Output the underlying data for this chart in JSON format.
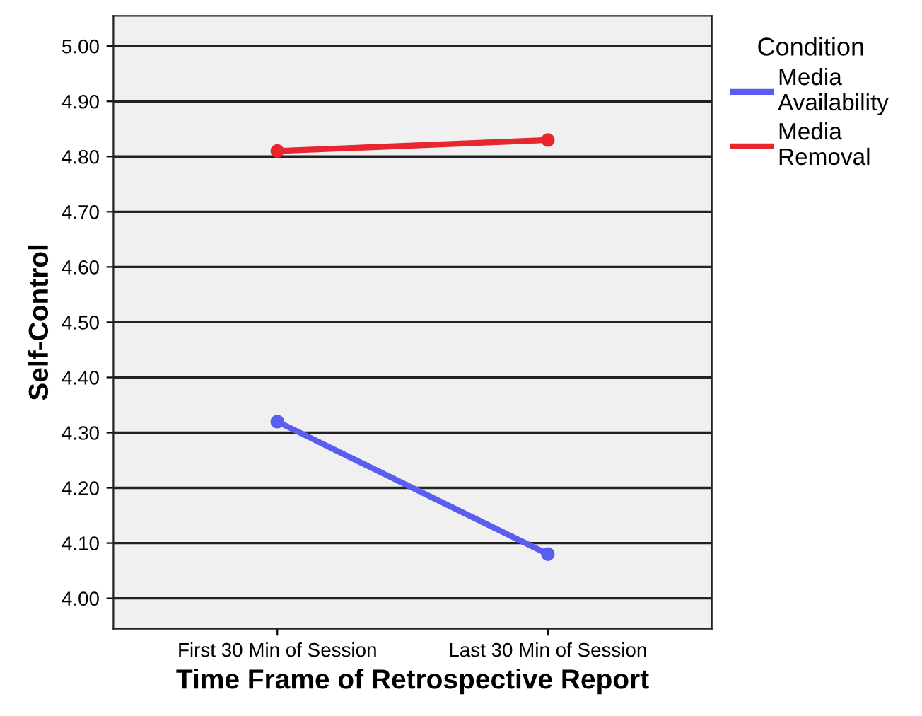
{
  "chart_data": {
    "type": "line",
    "xlabel": "Time Frame of Retrospective Report",
    "ylabel": "Self-Control",
    "legend_title": "Condition",
    "categories": [
      "First 30 Min of Session",
      "Last 30 Min of Session"
    ],
    "series": [
      {
        "name": "Media\nAvailability",
        "color": "#5b5cf0",
        "values": [
          4.32,
          4.08
        ]
      },
      {
        "name": "Media\nRemoval",
        "color": "#e8262f",
        "values": [
          4.81,
          4.83
        ]
      }
    ],
    "ylim": [
      3.945,
      5.055
    ],
    "yticks": [
      {
        "value": 4.0,
        "label": "4.00"
      },
      {
        "value": 4.1,
        "label": "4.10"
      },
      {
        "value": 4.2,
        "label": "4.20"
      },
      {
        "value": 4.3,
        "label": "4.30"
      },
      {
        "value": 4.4,
        "label": "4.40"
      },
      {
        "value": 4.5,
        "label": "4.50"
      },
      {
        "value": 4.6,
        "label": "4.60"
      },
      {
        "value": 4.7,
        "label": "4.70"
      },
      {
        "value": 4.8,
        "label": "4.80"
      },
      {
        "value": 4.9,
        "label": "4.90"
      },
      {
        "value": 5.0,
        "label": "5.00"
      }
    ],
    "grid": "y",
    "legend": "top right",
    "marker": "circle",
    "line_style": "solid"
  }
}
